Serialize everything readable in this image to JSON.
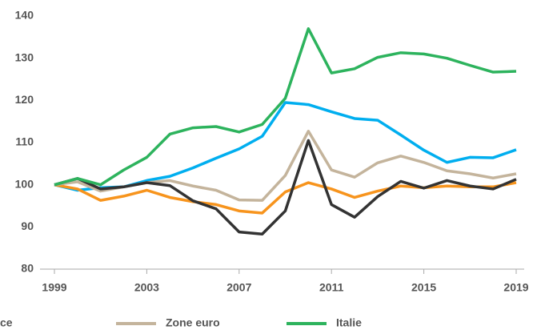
{
  "chart_data": {
    "type": "line",
    "x": [
      1999,
      2000,
      2001,
      2002,
      2003,
      2004,
      2005,
      2006,
      2007,
      2008,
      2009,
      2010,
      2011,
      2012,
      2013,
      2014,
      2015,
      2016,
      2017,
      2018,
      2019
    ],
    "xlim": [
      1999,
      2019
    ],
    "xticks": [
      1999,
      2003,
      2007,
      2011,
      2015,
      2019
    ],
    "ylim": [
      80,
      140
    ],
    "yticks": [
      80,
      90,
      100,
      110,
      120,
      130,
      140
    ],
    "series": [
      {
        "color": "#00aeef",
        "values": [
          100,
          98.7,
          99.3,
          99.5,
          101,
          102,
          104,
          106.3,
          108.5,
          111.5,
          119.5,
          119,
          117.3,
          115.7,
          115.3,
          111.8,
          108.2,
          105.3,
          106.5,
          106.4,
          108.3
        ]
      },
      {
        "color": "#f7941d",
        "values": [
          100,
          99,
          96.3,
          97.3,
          98.7,
          97,
          96,
          95.3,
          93.8,
          93.3,
          98.3,
          100.5,
          99,
          97,
          98.5,
          99.7,
          99.3,
          99.7,
          99.5,
          99.5,
          100.5
        ]
      },
      {
        "color": "#c4b49c",
        "name": "Zone euro",
        "values": [
          100,
          100.7,
          98.5,
          99.5,
          100.5,
          101,
          99.7,
          98.7,
          96.4,
          96.3,
          102.2,
          112.7,
          103.5,
          101.8,
          105.2,
          106.8,
          105.3,
          103.3,
          102.6,
          101.6,
          102.6
        ]
      },
      {
        "color": "#333333",
        "values": [
          100,
          101.5,
          99,
          99.5,
          100.5,
          99.8,
          96.2,
          94.3,
          88.8,
          88.3,
          93.8,
          110.5,
          95.3,
          92.3,
          97.2,
          100.8,
          99.2,
          101,
          99.7,
          99,
          101.3
        ]
      },
      {
        "color": "#2db35d",
        "name": "Italie",
        "values": [
          100,
          101.5,
          100,
          103.5,
          106.5,
          112,
          113.5,
          113.8,
          112.5,
          114.3,
          120.5,
          137,
          126.5,
          127.5,
          130.2,
          131.3,
          131,
          130,
          128.3,
          126.7,
          126.9
        ]
      }
    ],
    "annotations": [
      "ce"
    ]
  }
}
